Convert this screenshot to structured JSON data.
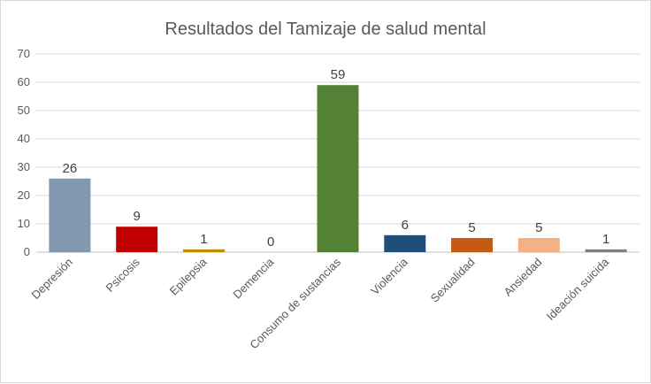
{
  "chart_data": {
    "type": "bar",
    "title": "Resultados del Tamizaje de salud mental",
    "xlabel": "",
    "ylabel": "",
    "ylim": [
      0,
      70
    ],
    "yticks": [
      0,
      10,
      20,
      30,
      40,
      50,
      60,
      70
    ],
    "grid": true,
    "legend": "none",
    "categories": [
      "Depresión",
      "Psicosis",
      "Epilepsia",
      "Demencia",
      "Consumo de sustancias",
      "Violencia",
      "Sexualidad",
      "Ansiedad",
      "Ideación suicida"
    ],
    "values": [
      26,
      9,
      1,
      0,
      59,
      6,
      5,
      5,
      1
    ],
    "colors": [
      "#8497b0",
      "#c00000",
      "#bf9000",
      "#a5a5a5",
      "#548235",
      "#1f4e79",
      "#c55a11",
      "#f4b183",
      "#7f7f7f"
    ]
  }
}
